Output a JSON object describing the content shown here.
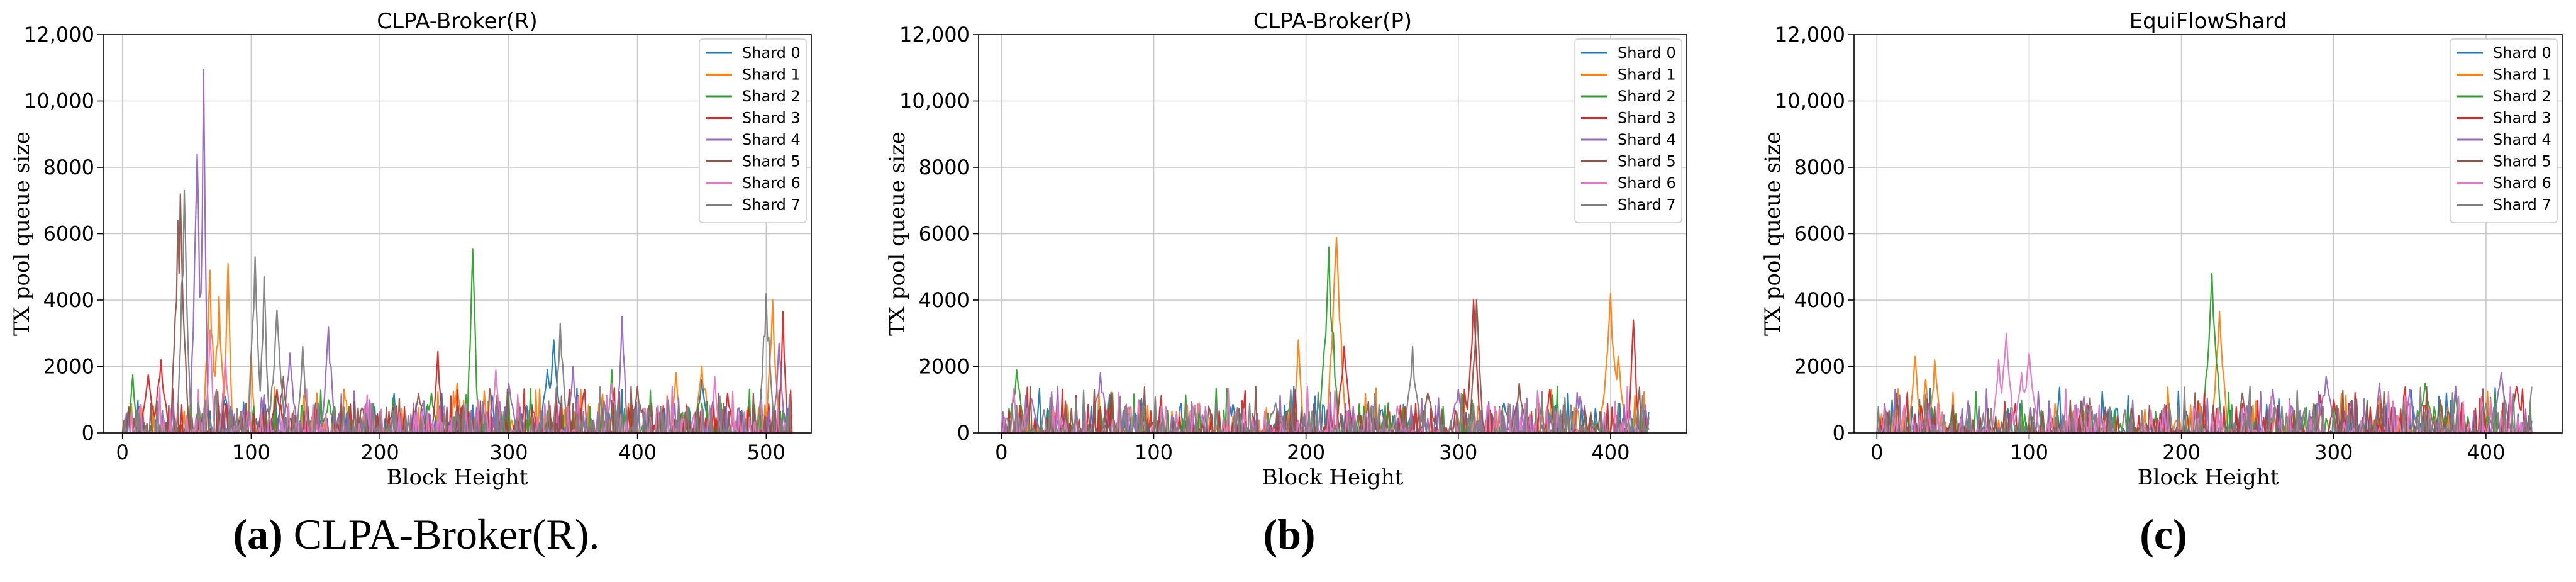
{
  "colors": [
    "#1f77b4",
    "#ff7f0e",
    "#2ca02c",
    "#d62728",
    "#9467bd",
    "#8c564b",
    "#e377c2",
    "#7f7f7f"
  ],
  "chart_data": [
    {
      "type": "line",
      "title": "CLPA-Broker(R)",
      "xlabel": "Block Height",
      "ylabel": "TX pool queue size",
      "xlim": [
        -15,
        535
      ],
      "ylim": [
        0,
        12000
      ],
      "xticks": [
        0,
        100,
        200,
        300,
        400,
        500
      ],
      "yticks": [
        0,
        2000,
        4000,
        6000,
        8000,
        10000,
        12000
      ],
      "ytick_labels": [
        "0",
        "2000",
        "4000",
        "6000",
        "8000",
        "10,000",
        "12,000"
      ],
      "grid": true,
      "legend_position": "top-right",
      "x_max": 520,
      "series": [
        {
          "name": "Shard 0",
          "peaks": [
            [
              335,
              2800
            ],
            [
              330,
              1900
            ],
            [
              80,
              1100
            ],
            [
              150,
              900
            ],
            [
              450,
              1600
            ],
            [
              210,
              800
            ]
          ]
        },
        {
          "name": "Shard 1",
          "peaks": [
            [
              82,
              5100
            ],
            [
              68,
              4900
            ],
            [
              75,
              4100
            ],
            [
              450,
              2000
            ],
            [
              505,
              4000
            ],
            [
              100,
              2400
            ],
            [
              430,
              1800
            ],
            [
              260,
              1500
            ]
          ]
        },
        {
          "name": "Shard 2",
          "peaks": [
            [
              272,
              5550
            ],
            [
              8,
              1750
            ],
            [
              380,
              1900
            ],
            [
              240,
              1200
            ],
            [
              160,
              1000
            ]
          ]
        },
        {
          "name": "Shard 3",
          "peaks": [
            [
              513,
              3650
            ],
            [
              20,
              1750
            ],
            [
              30,
              2200
            ],
            [
              245,
              2450
            ],
            [
              470,
              1200
            ],
            [
              120,
              1300
            ]
          ]
        },
        {
          "name": "Shard 4",
          "peaks": [
            [
              63,
              10950
            ],
            [
              58,
              8400
            ],
            [
              388,
              3500
            ],
            [
              160,
              3200
            ],
            [
              510,
              2700
            ],
            [
              350,
              2000
            ],
            [
              130,
              2400
            ],
            [
              300,
              1500
            ]
          ]
        },
        {
          "name": "Shard 5",
          "peaks": [
            [
              45,
              7200
            ],
            [
              43,
              6400
            ],
            [
              125,
              1700
            ],
            [
              230,
              1200
            ],
            [
              400,
              1400
            ]
          ]
        },
        {
          "name": "Shard 6",
          "peaks": [
            [
              68,
              3100
            ],
            [
              290,
              1900
            ],
            [
              80,
              2300
            ],
            [
              460,
              1700
            ],
            [
              380,
              1500
            ]
          ]
        },
        {
          "name": "Shard 7",
          "peaks": [
            [
              48,
              7300
            ],
            [
              103,
              5300
            ],
            [
              110,
              4700
            ],
            [
              500,
              4200
            ],
            [
              340,
              3300
            ],
            [
              120,
              3700
            ],
            [
              140,
              2600
            ]
          ]
        }
      ]
    },
    {
      "type": "line",
      "title": "CLPA-Broker(P)",
      "xlabel": "Block Height",
      "ylabel": "TX pool queue size",
      "xlim": [
        -15,
        450
      ],
      "ylim": [
        0,
        12000
      ],
      "xticks": [
        0,
        100,
        200,
        300,
        400
      ],
      "yticks": [
        0,
        2000,
        4000,
        6000,
        8000,
        10000,
        12000
      ],
      "ytick_labels": [
        "0",
        "2000",
        "4000",
        "6000",
        "8000",
        "10,000",
        "12,000"
      ],
      "grid": true,
      "legend_position": "top-right",
      "x_max": 425,
      "series": [
        {
          "name": "Shard 0",
          "peaks": [
            [
              150,
              800
            ],
            [
              330,
              900
            ],
            [
              250,
              700
            ]
          ]
        },
        {
          "name": "Shard 1",
          "peaks": [
            [
              220,
              5900
            ],
            [
              400,
              4200
            ],
            [
              195,
              2800
            ],
            [
              405,
              2300
            ]
          ]
        },
        {
          "name": "Shard 2",
          "peaks": [
            [
              215,
              5600
            ],
            [
              10,
              1900
            ],
            [
              190,
              1100
            ]
          ]
        },
        {
          "name": "Shard 3",
          "peaks": [
            [
              415,
              3400
            ],
            [
              225,
              2600
            ],
            [
              310,
              4000
            ],
            [
              360,
              1300
            ]
          ]
        },
        {
          "name": "Shard 4",
          "peaks": [
            [
              65,
              1800
            ],
            [
              20,
              1000
            ],
            [
              300,
              1300
            ],
            [
              380,
              1100
            ]
          ]
        },
        {
          "name": "Shard 5",
          "peaks": [
            [
              312,
              4000
            ],
            [
              340,
              1500
            ],
            [
              280,
              1200
            ]
          ]
        },
        {
          "name": "Shard 6",
          "peaks": [
            [
              130,
              900
            ],
            [
              260,
              800
            ]
          ]
        },
        {
          "name": "Shard 7",
          "peaks": [
            [
              270,
              2600
            ],
            [
              180,
              900
            ]
          ]
        }
      ]
    },
    {
      "type": "line",
      "title": "EquiFlowShard",
      "xlabel": "Block Height",
      "ylabel": "TX pool queue size",
      "xlim": [
        -15,
        450
      ],
      "ylim": [
        0,
        12000
      ],
      "xticks": [
        0,
        100,
        200,
        300,
        400
      ],
      "yticks": [
        0,
        2000,
        4000,
        6000,
        8000,
        10000,
        12000
      ],
      "ytick_labels": [
        "0",
        "2000",
        "4000",
        "6000",
        "8000",
        "10,000",
        "12,000"
      ],
      "grid": true,
      "legend_position": "top-right",
      "x_max": 430,
      "series": [
        {
          "name": "Shard 0",
          "peaks": [
            [
              150,
              700
            ],
            [
              330,
              800
            ]
          ]
        },
        {
          "name": "Shard 1",
          "peaks": [
            [
              25,
              2300
            ],
            [
              38,
              2200
            ],
            [
              225,
              3650
            ],
            [
              32,
              1600
            ]
          ]
        },
        {
          "name": "Shard 2",
          "peaks": [
            [
              220,
              4800
            ],
            [
              360,
              1500
            ],
            [
              380,
              1200
            ]
          ]
        },
        {
          "name": "Shard 3",
          "peaks": [
            [
              420,
              1400
            ],
            [
              300,
              1000
            ]
          ]
        },
        {
          "name": "Shard 4",
          "peaks": [
            [
              295,
              1700
            ],
            [
              330,
              1500
            ],
            [
              380,
              1400
            ],
            [
              410,
              1800
            ],
            [
              260,
              1300
            ],
            [
              350,
              1300
            ]
          ]
        },
        {
          "name": "Shard 5",
          "peaks": [
            [
              240,
              1200
            ],
            [
              370,
              1000
            ]
          ]
        },
        {
          "name": "Shard 6",
          "peaks": [
            [
              85,
              3000
            ],
            [
              100,
              2400
            ],
            [
              80,
              2200
            ],
            [
              95,
              1800
            ]
          ]
        },
        {
          "name": "Shard 7",
          "peaks": [
            [
              140,
              800
            ],
            [
              400,
              900
            ]
          ]
        }
      ]
    }
  ],
  "captions": [
    {
      "label": "(a)",
      "text": " CLPA-Broker(R)."
    },
    {
      "label": "(b)",
      "text": ""
    },
    {
      "label": "(c)",
      "text": ""
    }
  ]
}
